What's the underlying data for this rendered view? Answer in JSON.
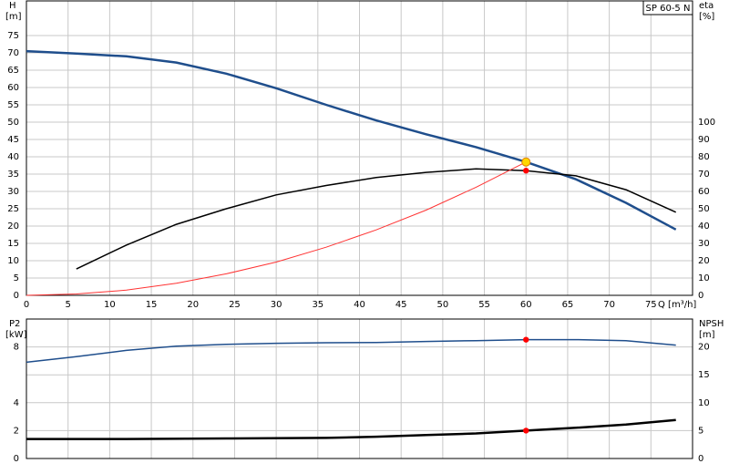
{
  "chart_data": [
    {
      "type": "line",
      "title": "SP 60-5 N",
      "x_label": "Q [m³/h]",
      "y_label": "H",
      "y_unit": "[m]",
      "y2_label": "eta",
      "y2_unit": "[%]",
      "xlim": [
        0,
        80
      ],
      "xticks": [
        0,
        5,
        10,
        15,
        20,
        25,
        30,
        35,
        40,
        45,
        50,
        55,
        60,
        65,
        70,
        75
      ],
      "show_xtick_labels": true,
      "ylim": [
        0,
        85
      ],
      "yticks": [
        0,
        5,
        10,
        15,
        20,
        25,
        30,
        35,
        40,
        45,
        50,
        55,
        60,
        65,
        70,
        75
      ],
      "y2lim": [
        0,
        170
      ],
      "y2ticks": [
        0,
        10,
        20,
        30,
        40,
        50,
        60,
        70,
        80,
        90,
        100
      ],
      "grid": true,
      "series": [
        {
          "color": "#1f4e8c",
          "width": 2.5,
          "x": [
            0,
            6,
            12,
            18,
            24,
            30,
            36,
            42,
            48,
            54,
            60,
            66,
            72,
            78
          ],
          "values": [
            70.5,
            69.8,
            69,
            67.2,
            64,
            59.8,
            55,
            50.5,
            46.5,
            42.8,
            38.5,
            33.5,
            26.7,
            19
          ]
        },
        {
          "color": "#000000",
          "width": 1.5,
          "axis": "y2",
          "x": [
            6,
            12,
            18,
            24,
            30,
            36,
            42,
            48,
            54,
            60,
            66,
            72,
            78
          ],
          "values": [
            15.2,
            29,
            41,
            50,
            58,
            63.4,
            68,
            71,
            73,
            72,
            69,
            61,
            48
          ]
        },
        {
          "color": "#ff3333",
          "width": 1,
          "x": [
            0,
            6,
            12,
            18,
            24,
            30,
            36,
            42,
            48,
            54,
            60
          ],
          "values": [
            0,
            0.4,
            1.5,
            3.5,
            6.2,
            9.6,
            13.9,
            18.9,
            24.6,
            31.2,
            38.5
          ]
        },
        {
          "color": "#ffd700",
          "marker": true,
          "x": [
            60
          ],
          "values": [
            38.5
          ]
        },
        {
          "color": "#ff0000",
          "marker": true,
          "axis": "y2",
          "x": [
            60
          ],
          "values": [
            72
          ]
        }
      ]
    },
    {
      "type": "line",
      "y_label": "P2",
      "y_unit": "[kW]",
      "y2_label": "NPSH",
      "y2_unit": "[m]",
      "xlim": [
        0,
        80
      ],
      "xticks": [
        0,
        5,
        10,
        15,
        20,
        25,
        30,
        35,
        40,
        45,
        50,
        55,
        60,
        65,
        70,
        75
      ],
      "show_xtick_labels": false,
      "ylim": [
        0,
        10
      ],
      "yticks": [
        0,
        2,
        4,
        8
      ],
      "y2lim": [
        0,
        25
      ],
      "y2ticks": [
        0,
        5,
        10,
        15,
        20
      ],
      "grid": true,
      "series": [
        {
          "color": "#1f4e8c",
          "width": 1.5,
          "x": [
            0,
            6,
            12,
            18,
            24,
            30,
            36,
            42,
            48,
            54,
            60,
            66,
            72,
            78
          ],
          "values": [
            6.9,
            7.3,
            7.75,
            8.06,
            8.19,
            8.26,
            8.3,
            8.32,
            8.39,
            8.45,
            8.52,
            8.52,
            8.45,
            8.13
          ]
        },
        {
          "color": "#000000",
          "width": 2.5,
          "axis": "y2",
          "x": [
            0,
            12,
            24,
            36,
            42,
            48,
            54,
            60,
            66,
            72,
            78
          ],
          "values": [
            3.5,
            3.5,
            3.6,
            3.7,
            3.9,
            4.2,
            4.5,
            5,
            5.5,
            6.1,
            6.9
          ]
        },
        {
          "color": "#ff0000",
          "marker": true,
          "x": [
            60
          ],
          "values": [
            8.52
          ]
        },
        {
          "color": "#ff0000",
          "marker": true,
          "axis": "y2",
          "x": [
            60
          ],
          "values": [
            5
          ]
        }
      ]
    }
  ]
}
